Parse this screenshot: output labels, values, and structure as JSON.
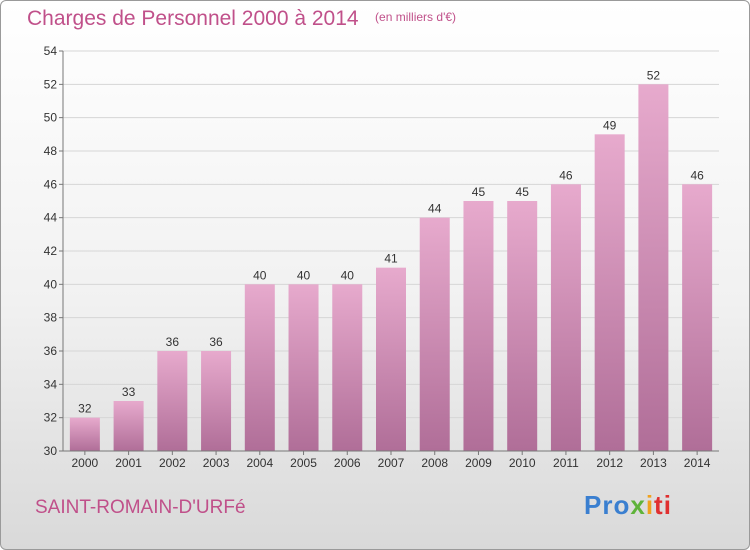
{
  "header": {
    "title": "Charges de Personnel 2000 à 2014",
    "subtitle": "(en milliers d'€)"
  },
  "footer": {
    "commune": "SAINT-ROMAIN-D'URFé",
    "logo": "Proxiti"
  },
  "colors": {
    "bar_top": "#e7aacd",
    "bar_bottom": "#b06e98",
    "text_accent": "#c0508a",
    "grid": "#d6d6d6"
  },
  "chart_data": {
    "type": "bar",
    "title": "Charges de Personnel 2000 à 2014",
    "subtitle": "(en milliers d'€)",
    "xlabel": "",
    "ylabel": "",
    "categories": [
      "2000",
      "2001",
      "2002",
      "2003",
      "2004",
      "2005",
      "2006",
      "2007",
      "2008",
      "2009",
      "2010",
      "2011",
      "2012",
      "2013",
      "2014"
    ],
    "values": [
      32,
      33,
      36,
      36,
      40,
      40,
      40,
      41,
      44,
      45,
      45,
      46,
      49,
      52,
      46
    ],
    "ylim": [
      30,
      54
    ],
    "yticks": [
      30,
      32,
      34,
      36,
      38,
      40,
      42,
      44,
      46,
      48,
      50,
      52,
      54
    ],
    "grid": true,
    "legend": "none"
  }
}
